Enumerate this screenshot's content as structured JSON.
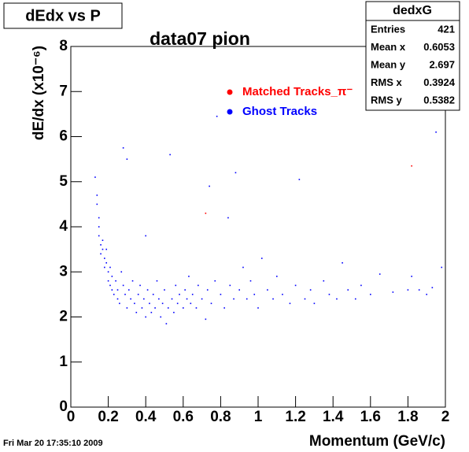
{
  "chart_data": {
    "type": "scatter",
    "title": "dEdx vs P",
    "subtitle": "data07 pion",
    "x_label": "Momentum  (GeV/c)",
    "y_label": "dE/dx (x10⁻⁶)",
    "timestamp": "Fri Mar 20 17:35:10 2009",
    "xlim": [
      0,
      2
    ],
    "ylim": [
      0,
      8
    ],
    "xticks": [
      0,
      0.2,
      0.4,
      0.6,
      0.8,
      1,
      1.2,
      1.4,
      1.6,
      1.8,
      2
    ],
    "yticks": [
      0,
      1,
      2,
      3,
      4,
      5,
      6,
      7,
      8
    ],
    "stats": {
      "title": "dedxG",
      "rows": [
        [
          "Entries",
          421
        ],
        [
          "Mean x",
          0.6053
        ],
        [
          "Mean y",
          2.697
        ],
        [
          "RMS x",
          0.3924
        ],
        [
          "RMS y",
          0.5382
        ]
      ]
    },
    "series": [
      {
        "name": "Matched Tracks_π⁻",
        "color": "#ff0000",
        "x": [
          0.72,
          1.82
        ],
        "values": [
          4.3,
          5.35
        ]
      },
      {
        "name": "Ghost Tracks",
        "color": "#0000ff",
        "x": [
          0.13,
          0.14,
          0.14,
          0.15,
          0.15,
          0.15,
          0.16,
          0.16,
          0.17,
          0.17,
          0.18,
          0.18,
          0.19,
          0.19,
          0.2,
          0.2,
          0.21,
          0.21,
          0.22,
          0.22,
          0.23,
          0.24,
          0.25,
          0.25,
          0.26,
          0.27,
          0.28,
          0.28,
          0.29,
          0.3,
          0.3,
          0.31,
          0.32,
          0.33,
          0.34,
          0.35,
          0.36,
          0.37,
          0.38,
          0.39,
          0.4,
          0.4,
          0.41,
          0.42,
          0.43,
          0.44,
          0.45,
          0.46,
          0.47,
          0.48,
          0.49,
          0.5,
          0.51,
          0.52,
          0.53,
          0.54,
          0.55,
          0.56,
          0.57,
          0.58,
          0.6,
          0.61,
          0.62,
          0.63,
          0.64,
          0.65,
          0.67,
          0.68,
          0.7,
          0.72,
          0.73,
          0.74,
          0.75,
          0.77,
          0.78,
          0.8,
          0.82,
          0.84,
          0.85,
          0.87,
          0.88,
          0.9,
          0.92,
          0.94,
          0.96,
          0.98,
          1.0,
          1.02,
          1.05,
          1.08,
          1.1,
          1.13,
          1.17,
          1.2,
          1.22,
          1.25,
          1.28,
          1.3,
          1.35,
          1.38,
          1.42,
          1.45,
          1.48,
          1.52,
          1.55,
          1.6,
          1.65,
          1.72,
          1.8,
          1.82,
          1.86,
          1.9,
          1.93,
          1.95,
          1.98
        ],
        "values": [
          5.1,
          4.7,
          4.5,
          4.2,
          4.0,
          3.8,
          3.6,
          3.4,
          3.7,
          3.5,
          3.3,
          3.1,
          3.5,
          3.2,
          3.0,
          2.8,
          3.1,
          2.7,
          2.9,
          2.6,
          2.5,
          2.8,
          2.4,
          2.6,
          2.3,
          3.0,
          2.7,
          5.75,
          2.5,
          2.2,
          5.5,
          2.6,
          2.4,
          2.8,
          2.3,
          2.1,
          2.5,
          2.7,
          2.2,
          2.4,
          2.0,
          3.8,
          2.6,
          2.3,
          2.1,
          2.5,
          2.2,
          2.8,
          2.4,
          2.0,
          2.3,
          2.6,
          1.85,
          2.2,
          5.6,
          2.4,
          2.1,
          2.7,
          2.3,
          2.5,
          2.2,
          2.6,
          2.4,
          2.9,
          2.3,
          2.5,
          2.2,
          2.7,
          2.4,
          1.95,
          2.6,
          4.9,
          2.3,
          2.8,
          6.45,
          2.5,
          2.2,
          4.2,
          2.7,
          2.4,
          5.2,
          2.6,
          3.1,
          2.4,
          2.8,
          2.5,
          2.2,
          3.3,
          2.6,
          2.4,
          2.9,
          2.5,
          2.3,
          2.7,
          5.05,
          2.4,
          2.6,
          2.3,
          2.8,
          2.5,
          2.4,
          3.2,
          2.6,
          2.4,
          2.7,
          2.5,
          2.95,
          2.55,
          2.6,
          2.9,
          2.6,
          2.5,
          2.65,
          6.1,
          3.1
        ]
      }
    ]
  }
}
